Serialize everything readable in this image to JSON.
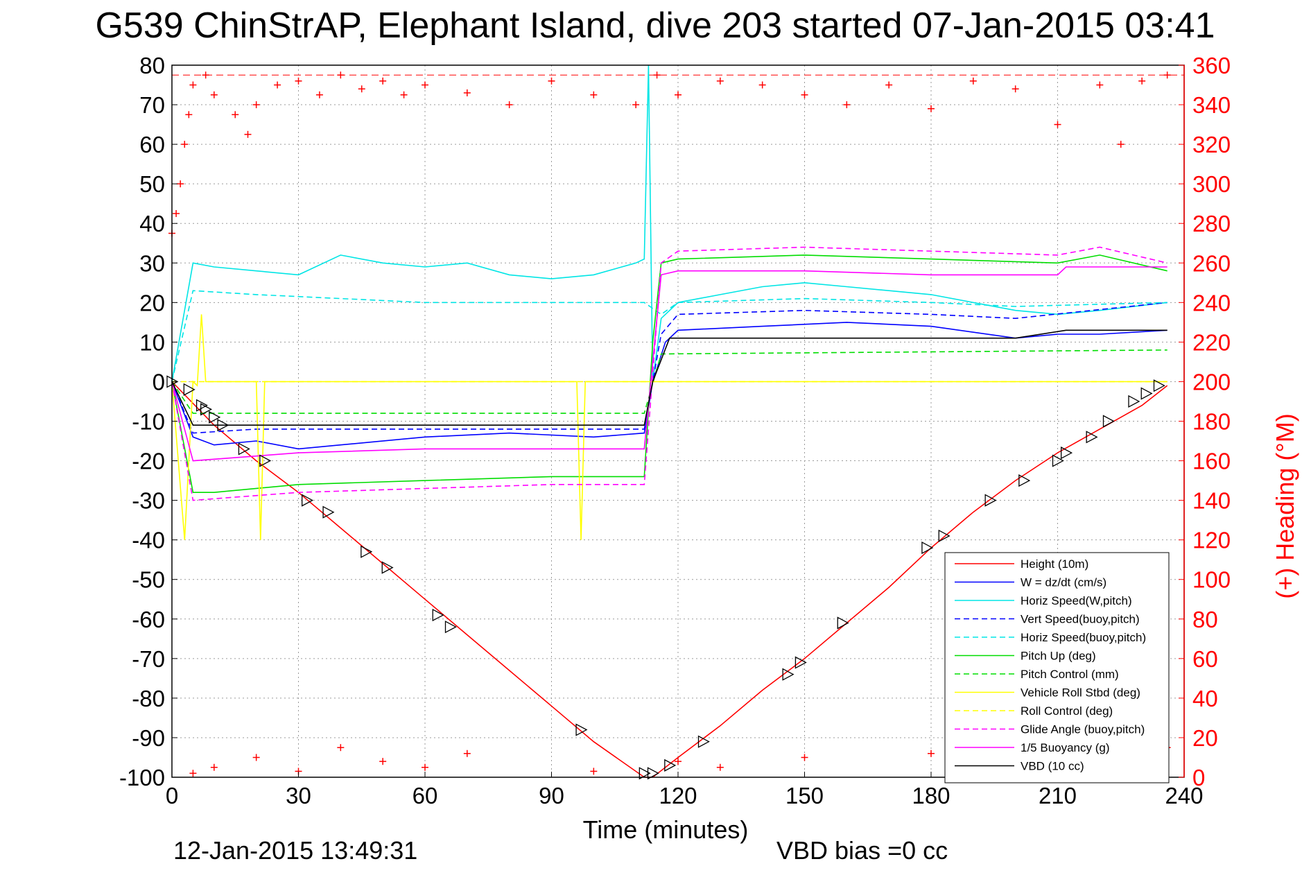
{
  "chart_data": {
    "type": "line",
    "title": "G539 ChinStrAP, Elephant Island, dive 203 started 07-Jan-2015 03:41",
    "xlabel": "Time (minutes)",
    "ylabel_right": "(+) Heading (°M)",
    "footer_left": "12-Jan-2015 13:49:31",
    "footer_right": "VBD bias =0 cc",
    "xlim": [
      0,
      240
    ],
    "ylim_left": [
      -100,
      80
    ],
    "ylim_right": [
      0,
      360
    ],
    "x_ticks": [
      "0",
      "30",
      "60",
      "90",
      "120",
      "150",
      "180",
      "210",
      "240"
    ],
    "y_ticks_left": [
      "80",
      "70",
      "60",
      "50",
      "40",
      "30",
      "20",
      "10",
      "0",
      "-10",
      "-20",
      "-30",
      "-40",
      "-50",
      "-60",
      "-70",
      "-80",
      "-90",
      "-100"
    ],
    "y_ticks_right": [
      "360",
      "340",
      "320",
      "300",
      "280",
      "260",
      "240",
      "220",
      "200",
      "180",
      "160",
      "140",
      "120",
      "100",
      "80",
      "60",
      "40",
      "20",
      "0"
    ],
    "right_axis_color": "#ff0000",
    "grid": true,
    "legend_position": "bottom-right",
    "series": [
      {
        "name": "Height (10m)",
        "color": "#ff0000",
        "style": "solid",
        "x": [
          0,
          10,
          20,
          30,
          40,
          50,
          60,
          70,
          80,
          90,
          100,
          112,
          114,
          120,
          130,
          140,
          150,
          160,
          170,
          180,
          190,
          200,
          210,
          220,
          230,
          236
        ],
        "y": [
          0,
          -11,
          -20,
          -28,
          -37,
          -46,
          -55,
          -64,
          -73,
          -82,
          -91,
          -100,
          -100,
          -95,
          -87,
          -78,
          -70,
          -61,
          -52,
          -42,
          -33,
          -25,
          -18,
          -12,
          -6,
          -1
        ]
      },
      {
        "name": "W = dz/dt (cm/s)",
        "color": "#0000ff",
        "style": "solid",
        "x": [
          0,
          5,
          10,
          20,
          30,
          40,
          60,
          80,
          100,
          112,
          114,
          117,
          120,
          140,
          160,
          180,
          200,
          210,
          220,
          236
        ],
        "y": [
          0,
          -14,
          -16,
          -15,
          -17,
          -16,
          -14,
          -13,
          -14,
          -13,
          0,
          10,
          13,
          14,
          15,
          14,
          11,
          12,
          12,
          13
        ]
      },
      {
        "name": "Horiz Speed(W,pitch)",
        "color": "#00e5e5",
        "style": "solid",
        "x": [
          0,
          5,
          10,
          20,
          30,
          40,
          50,
          60,
          70,
          80,
          90,
          100,
          110,
          112,
          113,
          114,
          116,
          120,
          130,
          140,
          150,
          160,
          170,
          180,
          190,
          200,
          210,
          220,
          236
        ],
        "y": [
          0,
          30,
          29,
          28,
          27,
          32,
          30,
          29,
          30,
          27,
          26,
          27,
          30,
          31,
          80,
          0,
          16,
          20,
          22,
          24,
          25,
          24,
          23,
          22,
          20,
          18,
          17,
          18,
          20
        ]
      },
      {
        "name": "Vert Speed(buoy,pitch)",
        "color": "#0000ff",
        "style": "dashed",
        "x": [
          0,
          5,
          20,
          60,
          100,
          112,
          116,
          120,
          150,
          180,
          200,
          236
        ],
        "y": [
          0,
          -13,
          -12,
          -12,
          -12,
          -12,
          12,
          17,
          18,
          17,
          16,
          20
        ]
      },
      {
        "name": "Horiz Speed(buoy,pitch)",
        "color": "#00e5e5",
        "style": "dashed",
        "x": [
          0,
          5,
          20,
          60,
          100,
          112,
          116,
          120,
          150,
          180,
          200,
          236
        ],
        "y": [
          0,
          23,
          22,
          20,
          20,
          20,
          17,
          20,
          21,
          20,
          19,
          20
        ]
      },
      {
        "name": "Pitch Up (deg)",
        "color": "#00dd00",
        "style": "solid",
        "x": [
          0,
          5,
          10,
          30,
          60,
          90,
          112,
          114,
          116,
          120,
          150,
          180,
          210,
          220,
          236
        ],
        "y": [
          0,
          -28,
          -28,
          -26,
          -25,
          -24,
          -24,
          10,
          30,
          31,
          32,
          31,
          30,
          32,
          28
        ]
      },
      {
        "name": "Pitch Control (mm)",
        "color": "#00dd00",
        "style": "dashed",
        "x": [
          0,
          5,
          112,
          116,
          236
        ],
        "y": [
          0,
          -8,
          -8,
          7,
          8
        ]
      },
      {
        "name": "Vehicle Roll Stbd (deg)",
        "color": "#ffff00",
        "style": "solid",
        "x": [
          0,
          3,
          5,
          6,
          7,
          8,
          20,
          21,
          22,
          40,
          60,
          96,
          97,
          98,
          150,
          180,
          195,
          210,
          236
        ],
        "y": [
          0,
          -40,
          0,
          -1,
          17,
          0,
          0,
          -40,
          0,
          0,
          0,
          0,
          -40,
          0,
          0,
          0,
          0,
          0,
          0
        ]
      },
      {
        "name": "Roll Control (deg)",
        "color": "#ffff00",
        "style": "dashed",
        "x": [
          0,
          5,
          30,
          60,
          112,
          120,
          150,
          180,
          210,
          236
        ],
        "y": [
          0,
          0,
          0,
          0,
          0,
          0,
          0,
          0,
          0,
          0
        ]
      },
      {
        "name": "Glide Angle (buoy,pitch)",
        "color": "#ff00ff",
        "style": "dashed",
        "x": [
          0,
          5,
          30,
          60,
          90,
          112,
          116,
          120,
          150,
          180,
          210,
          220,
          236
        ],
        "y": [
          0,
          -30,
          -28,
          -27,
          -26,
          -26,
          30,
          33,
          34,
          33,
          32,
          34,
          30
        ]
      },
      {
        "name": "1/5 Buoyancy (g)",
        "color": "#ff00ff",
        "style": "solid",
        "x": [
          0,
          5,
          30,
          60,
          90,
          112,
          116,
          120,
          150,
          180,
          210,
          212,
          236
        ],
        "y": [
          0,
          -20,
          -18,
          -17,
          -17,
          -17,
          27,
          28,
          28,
          27,
          27,
          29,
          29
        ]
      },
      {
        "name": "VBD (10 cc)",
        "color": "#000000",
        "style": "solid",
        "x": [
          0,
          5,
          112,
          114,
          118,
          120,
          150,
          180,
          200,
          212,
          236
        ],
        "y": [
          0,
          -11,
          -11,
          0,
          11,
          11,
          11,
          11,
          11,
          13,
          13
        ]
      }
    ],
    "heading_series": {
      "axis": "right",
      "color": "#ff0000",
      "marker": "+",
      "reference_line": 355,
      "x": [
        0,
        1,
        2,
        3,
        4,
        5,
        8,
        10,
        15,
        18,
        20,
        25,
        30,
        35,
        40,
        45,
        50,
        55,
        60,
        70,
        80,
        90,
        100,
        110,
        115,
        120,
        130,
        140,
        150,
        160,
        170,
        180,
        190,
        200,
        210,
        220,
        225,
        230,
        236
      ],
      "y": [
        275,
        285,
        300,
        320,
        335,
        350,
        355,
        345,
        335,
        325,
        340,
        350,
        352,
        345,
        355,
        348,
        352,
        345,
        350,
        346,
        340,
        352,
        345,
        340,
        355,
        345,
        352,
        350,
        345,
        340,
        350,
        338,
        352,
        348,
        330,
        350,
        320,
        352,
        355
      ]
    },
    "heading_bottom_cluster": {
      "x": [
        5,
        10,
        20,
        30,
        40,
        50,
        60,
        70,
        100,
        120,
        130,
        150,
        180,
        210,
        236
      ],
      "y": [
        2,
        5,
        10,
        3,
        15,
        8,
        5,
        12,
        3,
        8,
        5,
        10,
        12,
        5,
        15
      ]
    },
    "markers": {
      "x": [
        0,
        4,
        7,
        8,
        10,
        12,
        17,
        22,
        32,
        37,
        46,
        51,
        63,
        66,
        97,
        112,
        114,
        118,
        126,
        146,
        149,
        159,
        179,
        183,
        194,
        202,
        210,
        212,
        218,
        222,
        228,
        231,
        234
      ],
      "y": [
        0,
        -2,
        -6,
        -7,
        -9,
        -11,
        -17,
        -20,
        -30,
        -33,
        -43,
        -47,
        -59,
        -62,
        -88,
        -99,
        -99,
        -97,
        -91,
        -74,
        -71,
        -61,
        -42,
        -39,
        -30,
        -25,
        -20,
        -18,
        -14,
        -10,
        -5,
        -3,
        -1
      ]
    }
  }
}
